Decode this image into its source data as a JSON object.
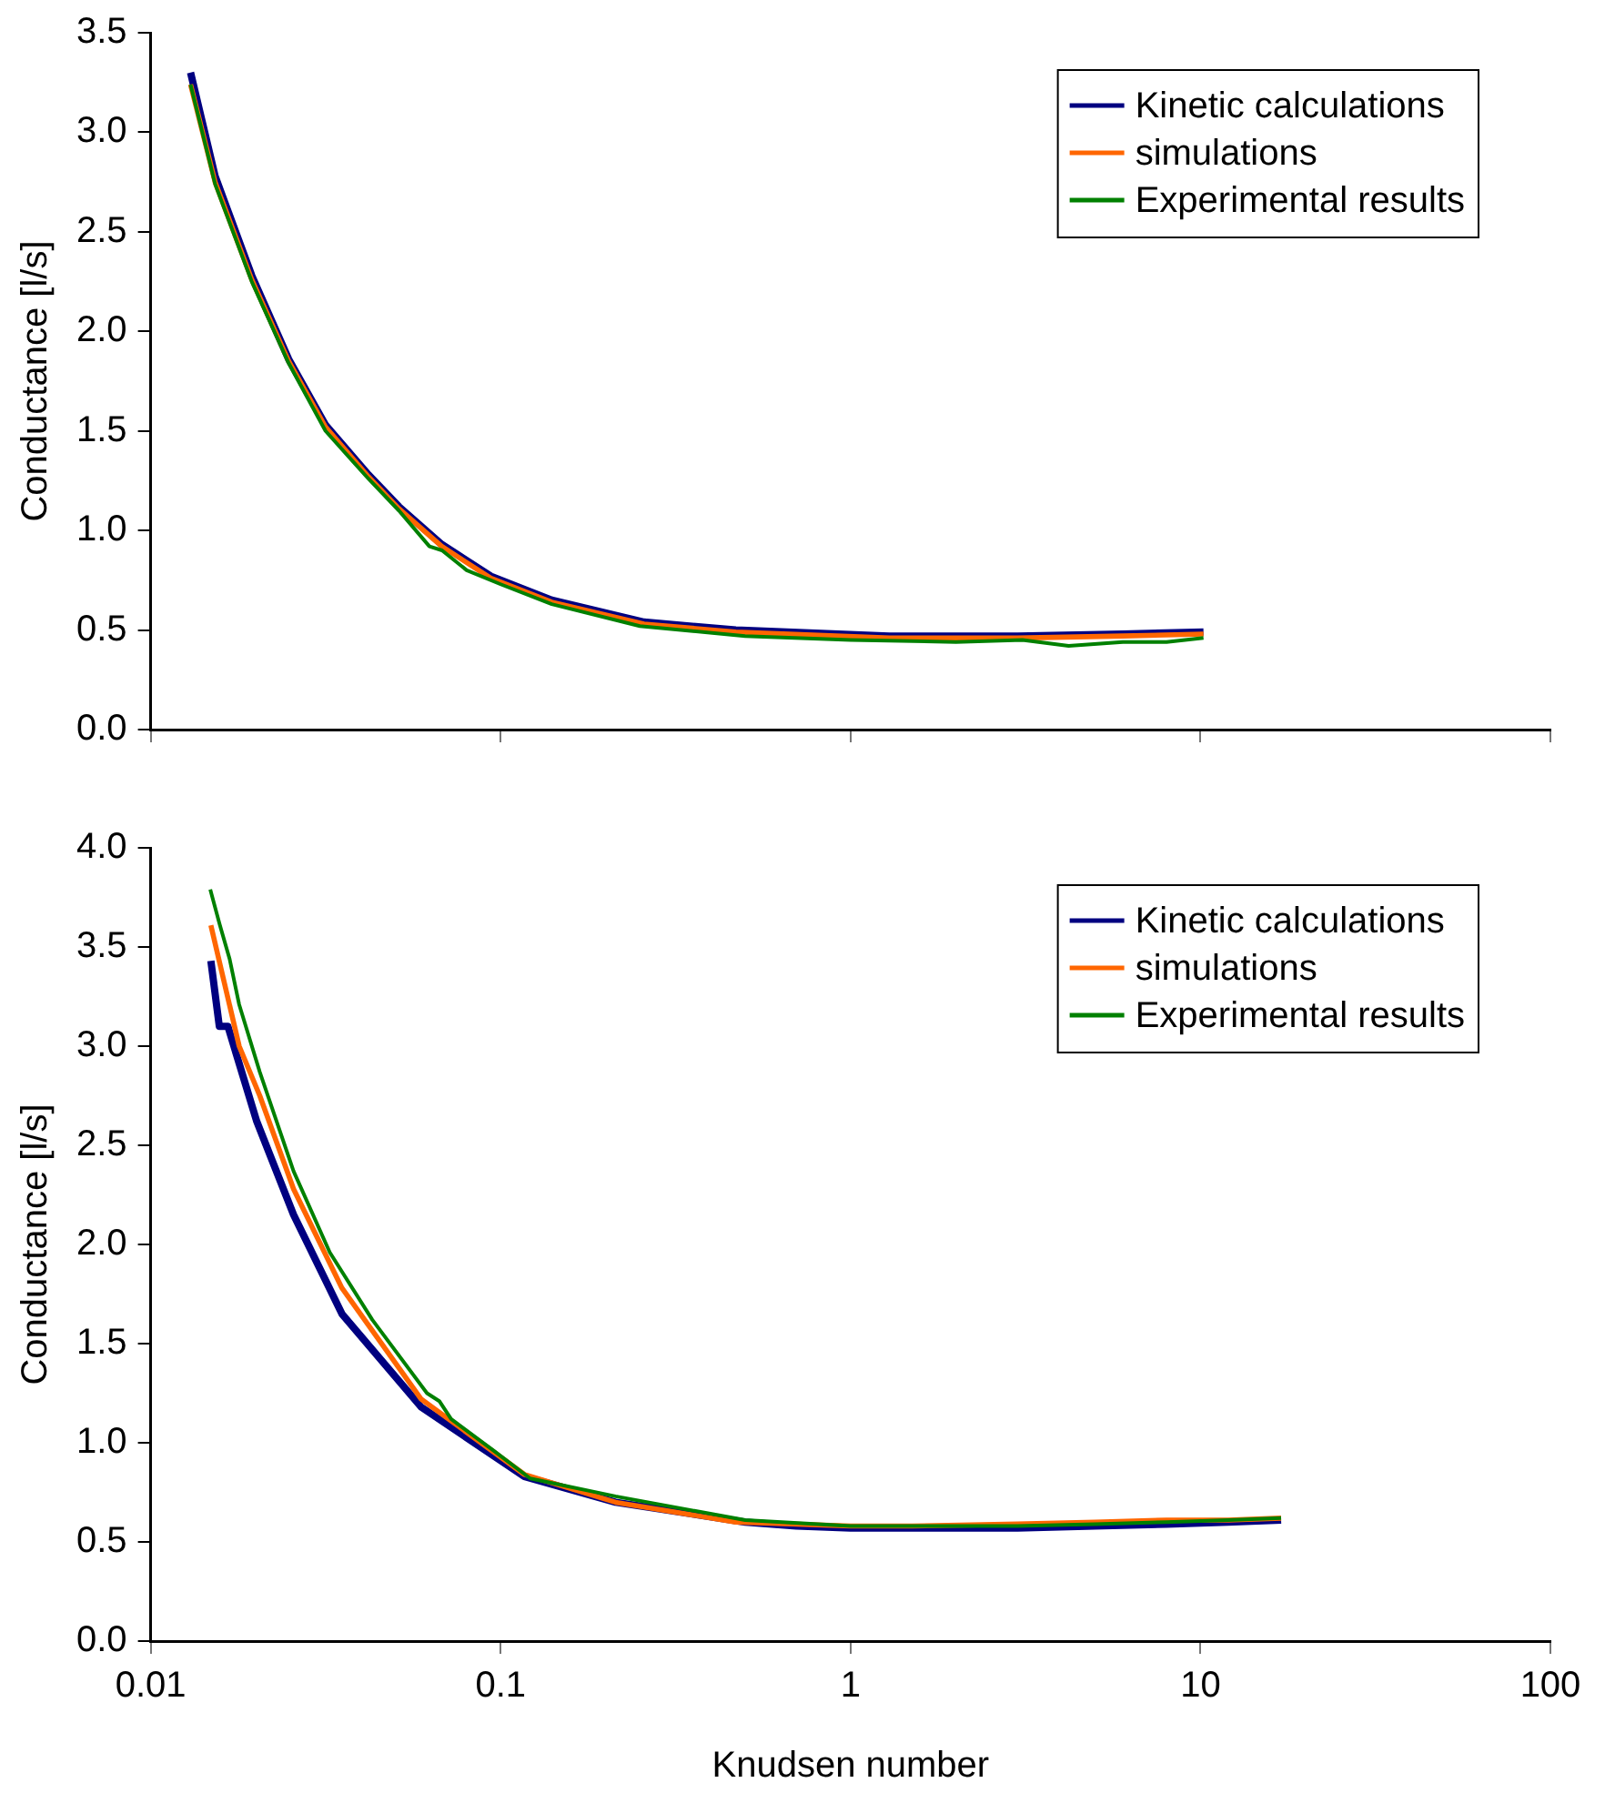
{
  "chart_data": [
    {
      "type": "line",
      "ylabel": "Conductance [l/s]",
      "log": "x",
      "xlim": [
        0.01,
        100
      ],
      "xticks": [
        0.01,
        0.1,
        1,
        10,
        100
      ],
      "ylim": [
        0,
        3.5
      ],
      "yticks": [
        {
          "value": 0,
          "label": "0.0"
        },
        {
          "value": 0.5,
          "label": "0.5"
        },
        {
          "value": 1,
          "label": "1.0"
        },
        {
          "value": 1.5,
          "label": "1.5"
        },
        {
          "value": 2,
          "label": "2.0"
        },
        {
          "value": 2.5,
          "label": "2.5"
        },
        {
          "value": 3,
          "label": "3.0"
        },
        {
          "value": 3.5,
          "label": "3.5"
        }
      ],
      "tick_labels": "y",
      "legend": "top right",
      "series": [
        {
          "name": "Kinetic calculations",
          "color": "#000080",
          "x": [
            0.013,
            0.01528,
            0.01945,
            0.0248,
            0.0316,
            0.0419,
            0.0512,
            0.0679,
            0.0938,
            0.14,
            0.257,
            0.47,
            1.29,
            3,
            6,
            10.2
          ],
          "values": [
            3.3,
            2.78,
            2.28,
            1.86,
            1.53,
            1.28,
            1.12,
            0.93,
            0.77,
            0.65,
            0.54,
            0.5,
            0.47,
            0.47,
            0.48,
            0.49
          ]
        },
        {
          "name": "simulations",
          "color": "#ff6600",
          "x": [
            0.013,
            0.01528,
            0.01945,
            0.0248,
            0.0316,
            0.0419,
            0.0512,
            0.0679,
            0.0938,
            0.14,
            0.257,
            0.47,
            1.29,
            3,
            6,
            10.2
          ],
          "values": [
            3.24,
            2.75,
            2.26,
            1.85,
            1.52,
            1.27,
            1.11,
            0.92,
            0.76,
            0.64,
            0.53,
            0.49,
            0.46,
            0.46,
            0.47,
            0.48
          ]
        },
        {
          "name": "Experimental results",
          "color": "#008000",
          "x": [
            0.013,
            0.01528,
            0.01945,
            0.0248,
            0.0316,
            0.0419,
            0.0512,
            0.0626,
            0.068,
            0.08,
            0.1,
            0.14,
            0.25,
            0.5,
            1,
            2,
            3.1,
            4.2,
            6,
            8,
            10.2
          ],
          "values": [
            3.24,
            2.74,
            2.25,
            1.84,
            1.5,
            1.26,
            1.1,
            0.92,
            0.9,
            0.8,
            0.73,
            0.63,
            0.52,
            0.47,
            0.45,
            0.44,
            0.45,
            0.42,
            0.44,
            0.44,
            0.46
          ]
        }
      ]
    },
    {
      "type": "line",
      "xlabel": "Knudsen number",
      "ylabel": "Conductance [l/s]",
      "log": "x",
      "xlim": [
        0.01,
        100
      ],
      "xticks": [
        0.01,
        0.1,
        1,
        10,
        100
      ],
      "ylim": [
        0,
        4
      ],
      "yticks": [
        {
          "value": 0,
          "label": "0.0"
        },
        {
          "value": 0.5,
          "label": "0.5"
        },
        {
          "value": 1,
          "label": "1.0"
        },
        {
          "value": 1.5,
          "label": "1.5"
        },
        {
          "value": 2,
          "label": "2.0"
        },
        {
          "value": 2.5,
          "label": "2.5"
        },
        {
          "value": 3,
          "label": "3.0"
        },
        {
          "value": 3.5,
          "label": "3.5"
        },
        {
          "value": 4,
          "label": "4.0"
        }
      ],
      "legend": "top right",
      "series": [
        {
          "name": "Kinetic calculations",
          "color": "#000080",
          "x": [
            0.01486,
            0.01571,
            0.01662,
            0.0201,
            0.0256,
            0.0352,
            0.0593,
            0.117,
            0.213,
            0.5,
            0.7,
            1,
            1.5,
            3,
            5,
            8,
            12,
            17
          ],
          "values": [
            3.43,
            3.1,
            3.1,
            2.62,
            2.15,
            1.65,
            1.18,
            0.83,
            0.7,
            0.6,
            0.58,
            0.57,
            0.57,
            0.57,
            0.58,
            0.59,
            0.6,
            0.61
          ]
        },
        {
          "name": "simulations",
          "color": "#ff6600",
          "x": [
            0.01486,
            0.0179,
            0.0205,
            0.0256,
            0.0352,
            0.0593,
            0.117,
            0.213,
            0.47,
            1,
            1.5,
            3,
            5,
            8,
            12,
            17
          ],
          "values": [
            3.61,
            3.0,
            2.75,
            2.28,
            1.78,
            1.22,
            0.84,
            0.7,
            0.6,
            0.58,
            0.58,
            0.59,
            0.6,
            0.61,
            0.61,
            0.62
          ]
        },
        {
          "name": "Experimental results",
          "color": "#008000",
          "x": [
            0.0148,
            0.01571,
            0.01681,
            0.0179,
            0.0205,
            0.0256,
            0.0325,
            0.043,
            0.0616,
            0.0668,
            0.0722,
            0.0955,
            0.1215,
            0.213,
            0.5,
            1,
            1.5,
            3,
            5,
            8,
            12,
            17
          ],
          "values": [
            3.79,
            3.62,
            3.44,
            3.21,
            2.87,
            2.37,
            1.96,
            1.62,
            1.25,
            1.21,
            1.12,
            0.96,
            0.82,
            0.73,
            0.61,
            0.58,
            0.58,
            0.58,
            0.59,
            0.6,
            0.61,
            0.62
          ]
        }
      ]
    }
  ]
}
